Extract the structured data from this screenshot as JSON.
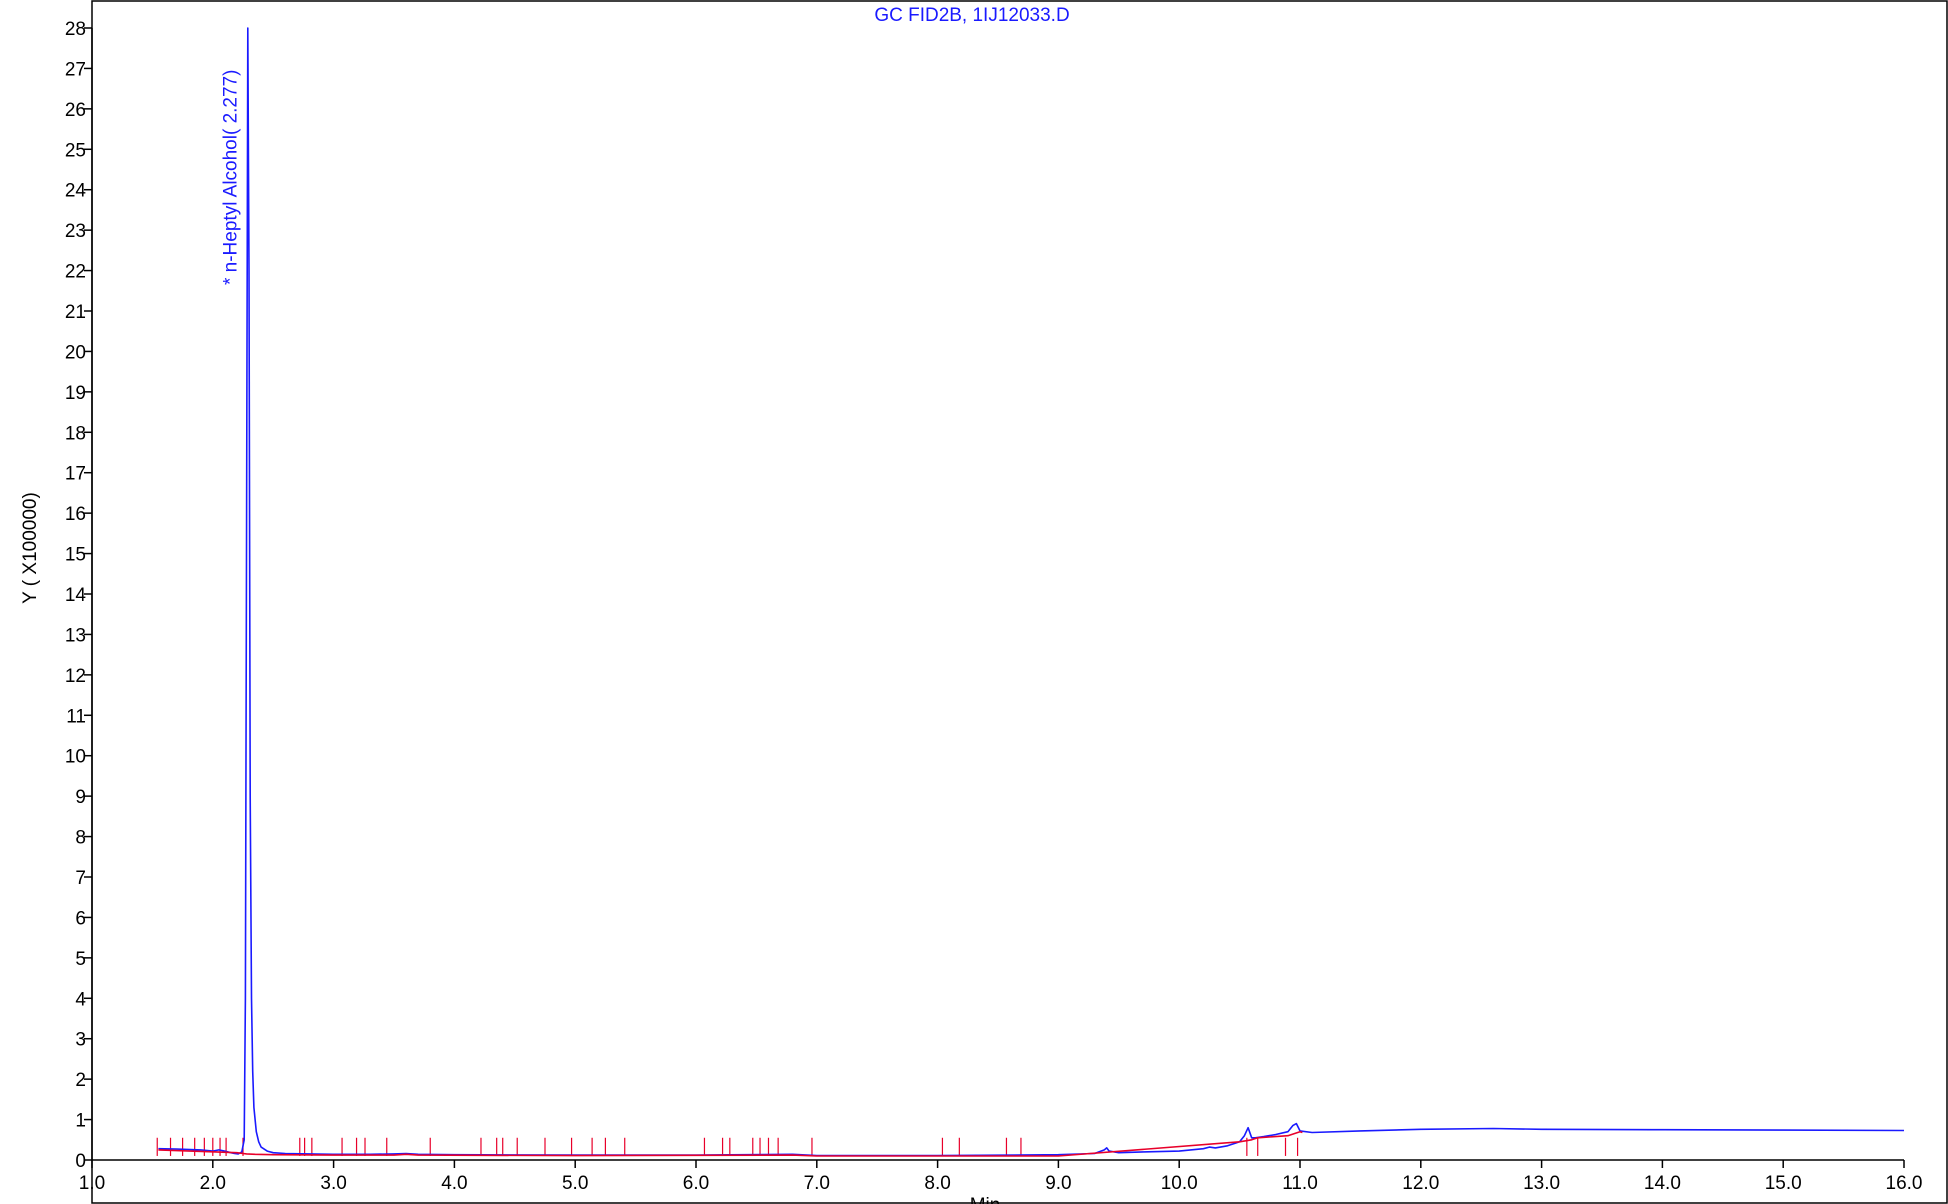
{
  "chart_data": {
    "type": "line",
    "title": "GC FID2B, 1IJ12033.D",
    "xlabel": "Min",
    "ylabel": "Y ( X100000)",
    "xlim": [
      1.0,
      16.0
    ],
    "ylim": [
      0,
      28
    ],
    "x_ticks": [
      1.0,
      2.0,
      3.0,
      4.0,
      5.0,
      6.0,
      7.0,
      8.0,
      9.0,
      10.0,
      11.0,
      12.0,
      13.0,
      14.0,
      15.0,
      16.0
    ],
    "x_tick_labels": [
      "1.0",
      "2.0",
      "3.0",
      "4.0",
      "5.0",
      "6.0",
      "7.0",
      "8.0",
      "9.0",
      "10.0",
      "11.0",
      "12.0",
      "13.0",
      "14.0",
      "15.0",
      "16.0"
    ],
    "y_ticks": [
      0,
      1,
      2,
      3,
      4,
      5,
      6,
      7,
      8,
      9,
      10,
      11,
      12,
      13,
      14,
      15,
      16,
      17,
      18,
      19,
      20,
      21,
      22,
      23,
      24,
      25,
      26,
      27,
      28
    ],
    "y_tick_labels": [
      "0",
      "1",
      "2",
      "3",
      "4",
      "5",
      "6",
      "7",
      "8",
      "9",
      "10",
      "11",
      "12",
      "13",
      "14",
      "15",
      "16",
      "17",
      "18",
      "19",
      "20",
      "21",
      "22",
      "23",
      "24",
      "25",
      "26",
      "27",
      "28"
    ],
    "grid": false,
    "colors": {
      "signal": "#1a1aff",
      "baseline": "#e8002a",
      "axes": "#000000"
    },
    "series": [
      {
        "x": [
          1.55,
          1.7,
          1.9,
          2.0,
          2.05,
          2.1,
          2.15,
          2.18,
          2.21,
          2.24,
          2.26,
          2.27,
          2.28,
          2.29,
          2.3,
          2.31,
          2.32,
          2.33,
          2.34,
          2.36,
          2.38,
          2.4,
          2.45,
          2.5,
          2.6,
          2.8,
          3.0,
          3.3,
          3.5,
          3.6,
          3.7,
          4.0,
          5.0,
          6.0,
          6.8,
          7.0,
          8.0,
          9.0,
          9.3,
          9.38,
          9.4,
          9.42,
          9.5,
          9.7,
          10.0,
          10.2,
          10.25,
          10.3,
          10.4,
          10.5,
          10.54,
          10.57,
          10.6,
          10.63,
          10.7,
          10.8,
          10.9,
          10.94,
          10.97,
          11.0,
          11.1,
          11.5,
          12.0,
          12.6,
          13.0,
          14.0,
          15.0,
          16.0
        ],
        "y": [
          0.28,
          0.27,
          0.25,
          0.22,
          0.25,
          0.22,
          0.18,
          0.16,
          0.15,
          0.2,
          0.5,
          4.0,
          16.0,
          28.0,
          22.0,
          9.0,
          4.0,
          2.2,
          1.3,
          0.7,
          0.45,
          0.32,
          0.22,
          0.18,
          0.16,
          0.15,
          0.14,
          0.14,
          0.15,
          0.16,
          0.14,
          0.13,
          0.12,
          0.12,
          0.14,
          0.11,
          0.11,
          0.13,
          0.16,
          0.25,
          0.3,
          0.22,
          0.18,
          0.2,
          0.22,
          0.28,
          0.32,
          0.3,
          0.35,
          0.45,
          0.6,
          0.8,
          0.55,
          0.55,
          0.58,
          0.63,
          0.7,
          0.85,
          0.9,
          0.72,
          0.68,
          0.72,
          0.76,
          0.78,
          0.76,
          0.75,
          0.74,
          0.73
        ]
      },
      {
        "x": [
          1.55,
          2.2,
          2.25,
          2.28,
          2.35,
          2.5,
          3.0,
          3.5,
          3.6,
          3.7,
          5.0,
          6.8,
          7.0,
          9.0,
          10.5,
          10.6,
          10.65,
          10.9,
          11.0,
          11.02
        ],
        "y": [
          0.25,
          0.18,
          0.16,
          0.15,
          0.14,
          0.13,
          0.12,
          0.12,
          0.14,
          0.12,
          0.11,
          0.12,
          0.1,
          0.1,
          0.45,
          0.5,
          0.55,
          0.6,
          0.7,
          0.68
        ]
      }
    ],
    "integration_marks": [
      1.54,
      1.65,
      1.75,
      1.85,
      1.93,
      2.0,
      2.06,
      2.11,
      2.25,
      2.72,
      2.76,
      2.82,
      3.07,
      3.19,
      3.26,
      3.44,
      3.8,
      4.22,
      4.35,
      4.4,
      4.52,
      4.75,
      4.97,
      5.14,
      5.25,
      5.41,
      6.07,
      6.22,
      6.28,
      6.47,
      6.53,
      6.6,
      6.68,
      6.96,
      8.04,
      8.18,
      8.57,
      8.69,
      10.56,
      10.65,
      10.88,
      10.98
    ],
    "annotations": [
      {
        "text": "* n-Heptyl Alcohol(  2.277)",
        "x": 2.277,
        "orientation": "vertical"
      }
    ]
  }
}
